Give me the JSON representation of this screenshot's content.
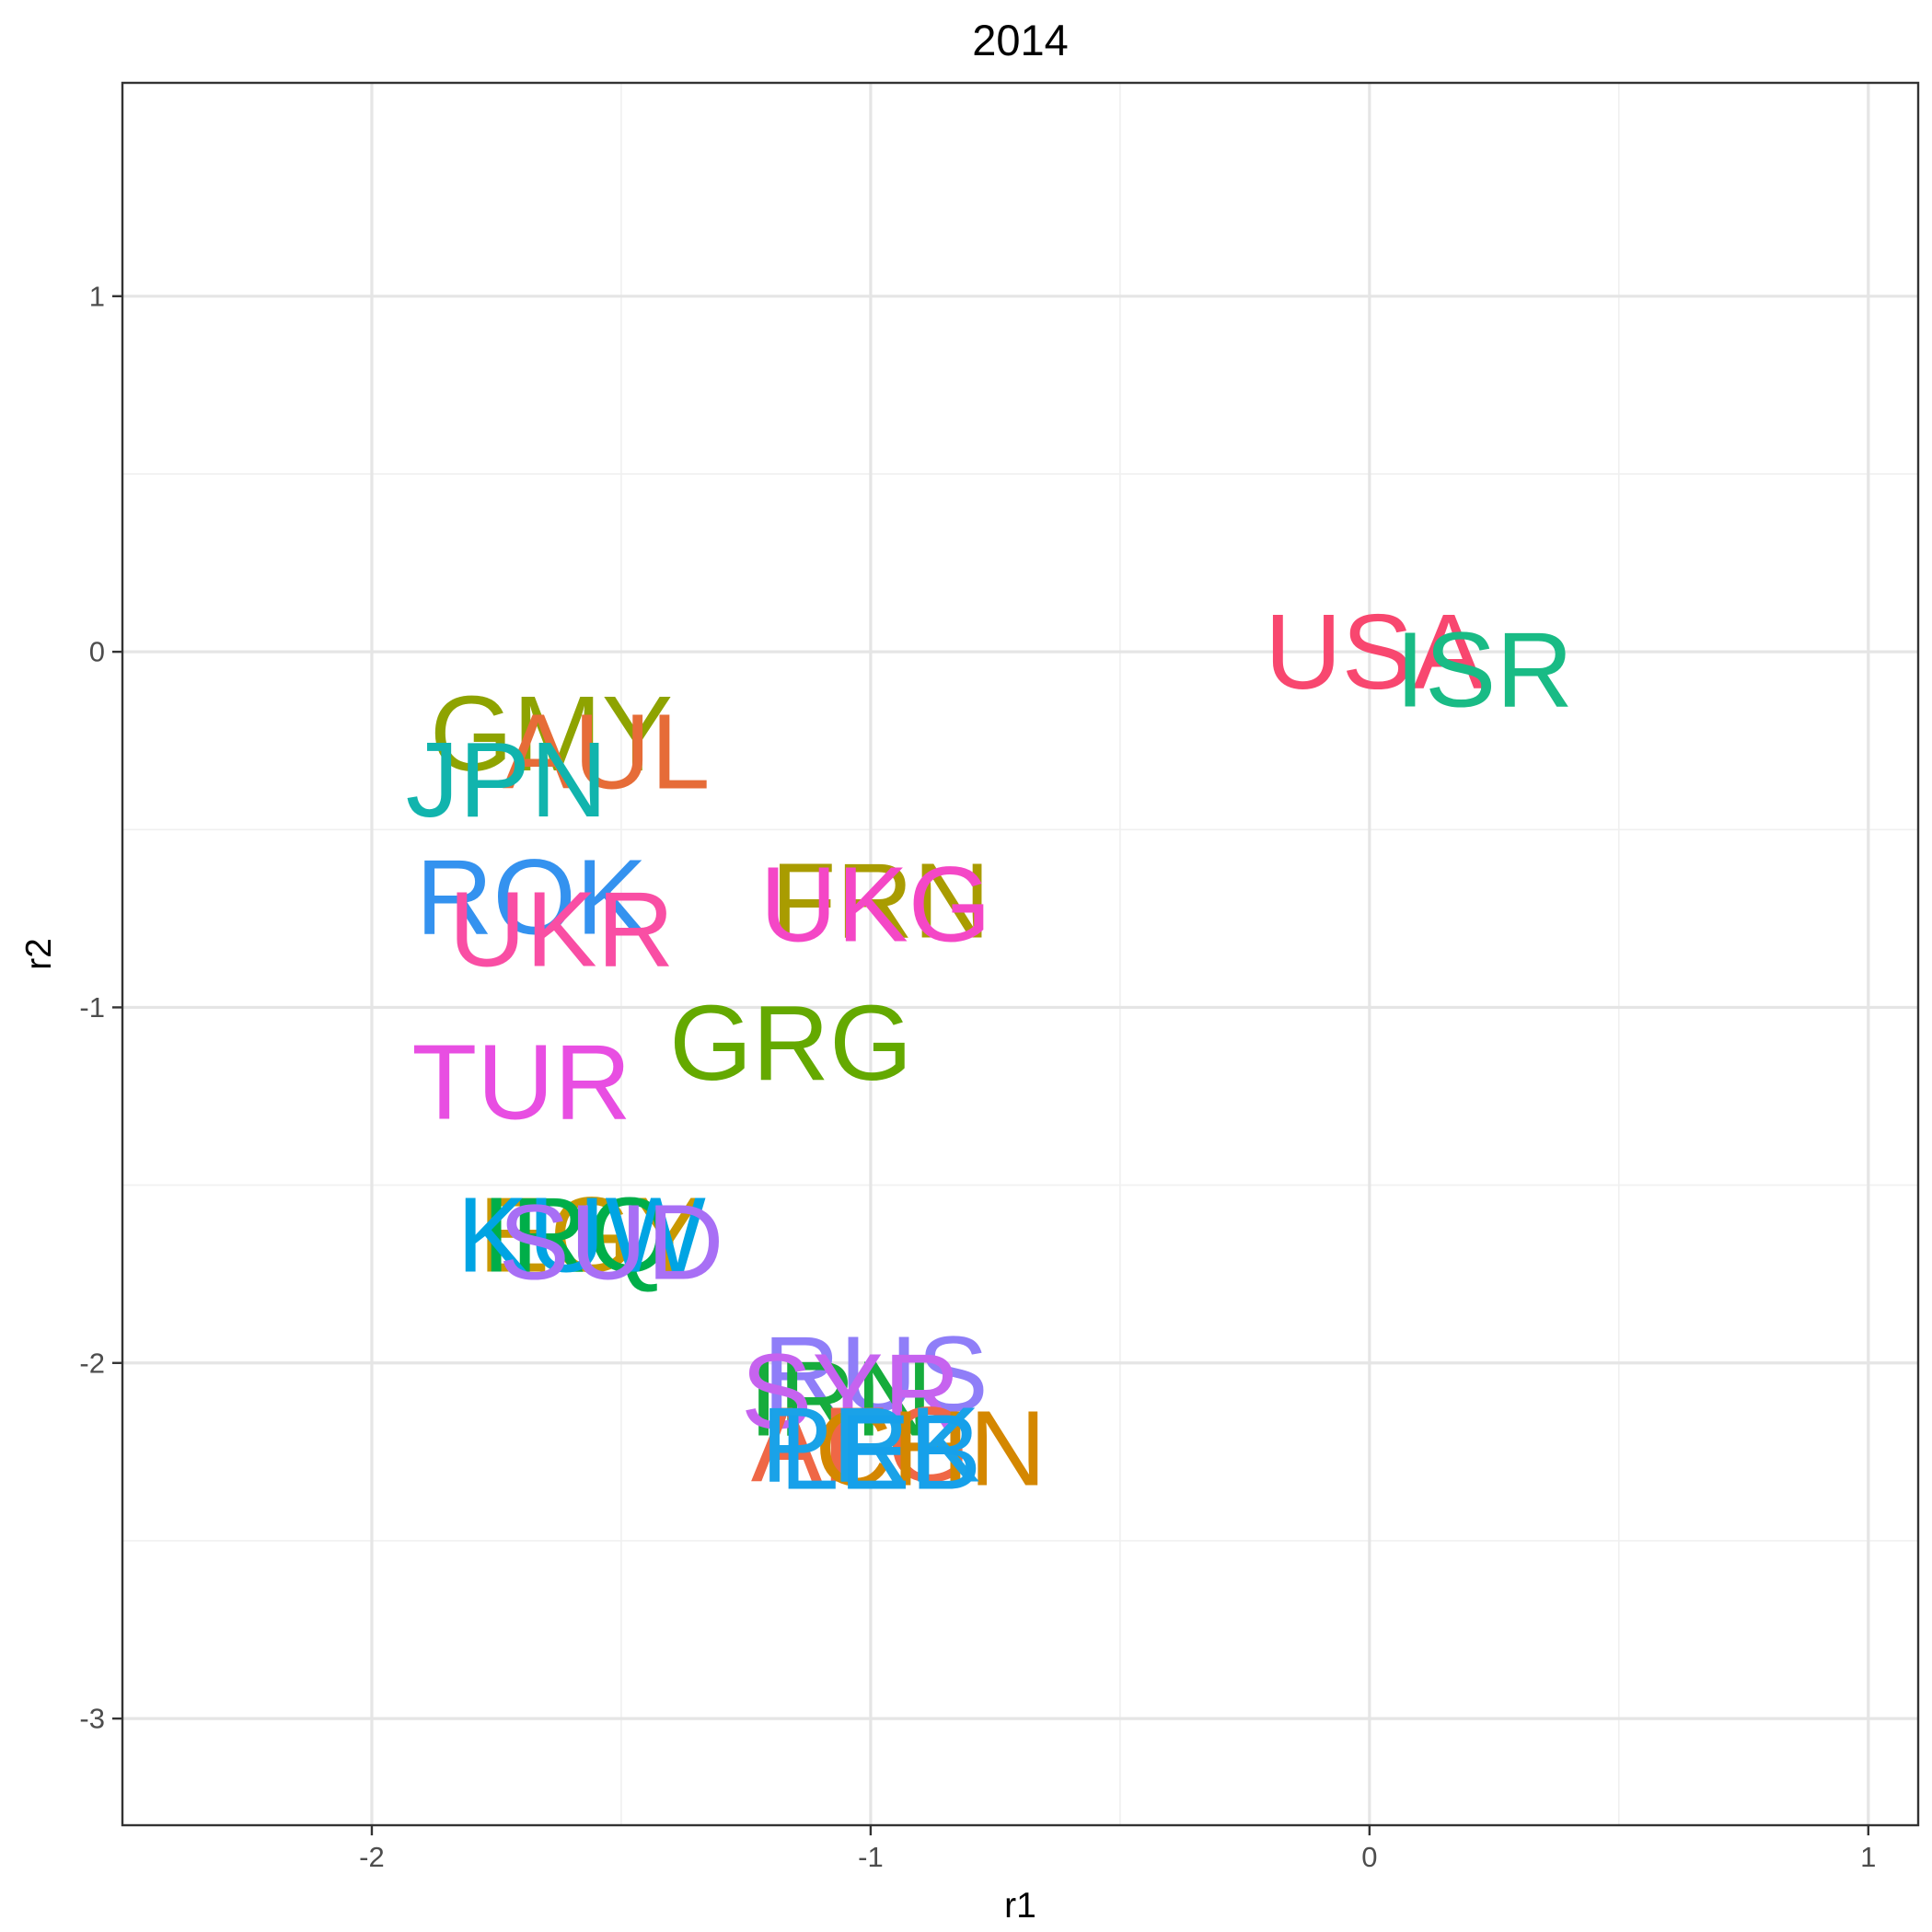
{
  "chart_data": {
    "type": "scatter",
    "title": "2014",
    "xlabel": "r1",
    "ylabel": "r2",
    "xlim": [
      -2.5,
      1.1
    ],
    "ylim": [
      -3.3,
      1.6
    ],
    "x_breaks": [
      -2,
      -1,
      0,
      1
    ],
    "x_minor_breaks": [
      -2.5,
      -1.5,
      -0.5,
      0.5
    ],
    "y_breaks": [
      -3,
      -2,
      -1,
      0,
      1
    ],
    "y_minor_breaks": [
      -2.5,
      -1.5,
      -0.5,
      0.5
    ],
    "x_tick_labels": [
      "-2",
      "-1",
      "0",
      "1"
    ],
    "y_tick_labels": [
      "-3",
      "-2",
      "-1",
      "0",
      "1"
    ],
    "grid": true,
    "legend": "none",
    "points": [
      {
        "label": "USA",
        "x": 0.01,
        "y": 0.0,
        "color": "#f8476f"
      },
      {
        "label": "ISR",
        "x": 0.23,
        "y": -0.05,
        "color": "#19bb85"
      },
      {
        "label": "GMY",
        "x": -1.64,
        "y": -0.23,
        "color": "#8ea300"
      },
      {
        "label": "AUL",
        "x": -1.53,
        "y": -0.28,
        "color": "#e66c38"
      },
      {
        "label": "JPN",
        "x": -1.73,
        "y": -0.36,
        "color": "#11b4ad"
      },
      {
        "label": "ROK",
        "x": -1.68,
        "y": -0.69,
        "color": "#3492ef"
      },
      {
        "label": "UKR",
        "x": -1.62,
        "y": -0.78,
        "color": "#f94ea4"
      },
      {
        "label": "FRN",
        "x": -0.98,
        "y": -0.7,
        "color": "#a99c00"
      },
      {
        "label": "UKG",
        "x": -0.99,
        "y": -0.71,
        "color": "#f447c6"
      },
      {
        "label": "GRG",
        "x": -1.16,
        "y": -1.1,
        "color": "#64a900"
      },
      {
        "label": "TUR",
        "x": -1.7,
        "y": -1.21,
        "color": "#e84ee2"
      },
      {
        "label": "EGY",
        "x": -1.56,
        "y": -1.64,
        "color": "#c99800"
      },
      {
        "label": "IRQ",
        "x": -1.59,
        "y": -1.64,
        "color": "#00ae49"
      },
      {
        "label": "KUW",
        "x": -1.58,
        "y": -1.64,
        "color": "#00a4e3"
      },
      {
        "label": "SUD",
        "x": -1.52,
        "y": -1.66,
        "color": "#a86ff5"
      },
      {
        "label": "RUS",
        "x": -0.99,
        "y": -2.03,
        "color": "#8f7ef8"
      },
      {
        "label": "IRN",
        "x": -1.06,
        "y": -2.1,
        "color": "#16ac3c"
      },
      {
        "label": "SYR",
        "x": -1.04,
        "y": -2.08,
        "color": "#c663ef"
      },
      {
        "label": "AFG",
        "x": -1.02,
        "y": -2.23,
        "color": "#ef6746"
      },
      {
        "label": "CHN",
        "x": -0.88,
        "y": -2.24,
        "color": "#d48700"
      },
      {
        "label": "PRK",
        "x": -1.0,
        "y": -2.23,
        "color": "#1aa2e8"
      },
      {
        "label": "LEB",
        "x": -0.98,
        "y": -2.25,
        "color": "#16a0ea"
      }
    ]
  }
}
